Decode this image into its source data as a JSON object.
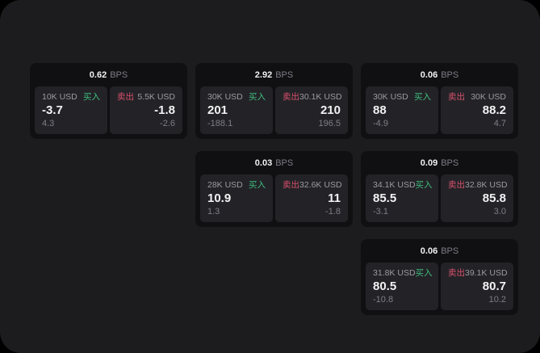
{
  "colors": {
    "buy_green": "#3fbe7d",
    "sell_red": "#d9506e",
    "window_bg": "#1c1c1e",
    "card_bg": "#101013",
    "panel_bg": "#232327"
  },
  "cards": [
    {
      "bps_value": "0.62",
      "bps_unit": "BPS",
      "buy": {
        "amount": "10K USD",
        "label": "买入",
        "value": "-3.7",
        "sub_value": "4.3"
      },
      "sell": {
        "label": "卖出",
        "amount": "5.5K USD",
        "value": "-1.8",
        "sub_value": "-2.6"
      }
    },
    {
      "bps_value": "2.92",
      "bps_unit": "BPS",
      "buy": {
        "amount": "30K USD",
        "label": "买入",
        "value": "201",
        "sub_value": "-188.1"
      },
      "sell": {
        "label": "卖出",
        "amount": "30.1K USD",
        "value": "210",
        "sub_value": "196.5"
      }
    },
    {
      "bps_value": "0.06",
      "bps_unit": "BPS",
      "buy": {
        "amount": "30K USD",
        "label": "买入",
        "value": "88",
        "sub_value": "-4.9"
      },
      "sell": {
        "label": "卖出",
        "amount": "30K USD",
        "value": "88.2",
        "sub_value": "4.7"
      }
    },
    {
      "bps_value": "0.03",
      "bps_unit": "BPS",
      "buy": {
        "amount": "28K USD",
        "label": "买入",
        "value": "10.9",
        "sub_value": "1.3"
      },
      "sell": {
        "label": "卖出",
        "amount": "32.6K USD",
        "value": "11",
        "sub_value": "-1.8"
      }
    },
    {
      "bps_value": "0.09",
      "bps_unit": "BPS",
      "buy": {
        "amount": "34.1K USD",
        "label": "买入",
        "value": "85.5",
        "sub_value": "-3.1"
      },
      "sell": {
        "label": "卖出",
        "amount": "32.8K USD",
        "value": "85.8",
        "sub_value": "3.0"
      }
    },
    {
      "bps_value": "0.06",
      "bps_unit": "BPS",
      "buy": {
        "amount": "31.8K USD",
        "label": "买入",
        "value": "80.5",
        "sub_value": "-10.8"
      },
      "sell": {
        "label": "卖出",
        "amount": "39.1K USD",
        "value": "80.7",
        "sub_value": "10.2"
      }
    }
  ]
}
